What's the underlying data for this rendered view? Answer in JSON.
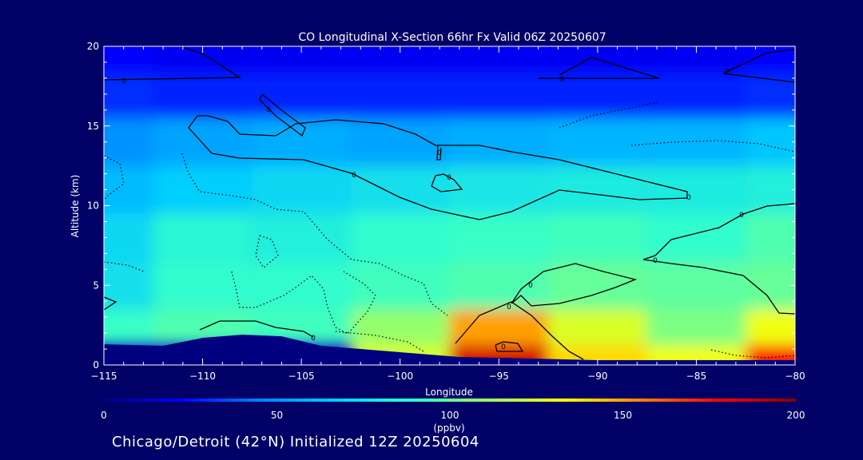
{
  "chart_data": {
    "type": "heatmap",
    "title": "CO Longitudinal X-Section 66hr  Fx Valid 06Z 20250607",
    "xlabel": "Longitude",
    "ylabel": "Altitude (km)",
    "xlim": [
      -115,
      -80
    ],
    "ylim": [
      0,
      20
    ],
    "x_ticks": [
      -115,
      -110,
      -105,
      -100,
      -95,
      -90,
      -85,
      -80
    ],
    "x_tick_labels": [
      "−115",
      "−110",
      "−105",
      "−100",
      "−95",
      "−90",
      "−85",
      "−80"
    ],
    "y_ticks": [
      0,
      5,
      10,
      15,
      20
    ],
    "y_tick_labels": [
      "0",
      "5",
      "10",
      "15",
      "20"
    ],
    "colorbar": {
      "min": 0,
      "max": 200,
      "ticks": [
        0,
        50,
        100,
        150,
        200
      ],
      "tick_labels": [
        "0",
        "50",
        "100",
        "150",
        "200"
      ],
      "units": "(ppbv)",
      "colors": [
        "#000080",
        "#0000ff",
        "#0080ff",
        "#00ccff",
        "#33ffcc",
        "#99ff66",
        "#ffff00",
        "#ff8000",
        "#ff0000",
        "#800000"
      ]
    },
    "co_field": {
      "x": [
        -115,
        -110,
        -105,
        -100,
        -95,
        -90,
        -85,
        -80
      ],
      "altitude_levels": [
        0.5,
        2,
        5,
        8,
        11,
        14,
        17,
        19.5
      ],
      "values": [
        [
          null,
          null,
          null,
          125,
          185,
          140,
          130,
          175
        ],
        [
          90,
          95,
          92,
          110,
          150,
          125,
          105,
          130
        ],
        [
          75,
          88,
          88,
          92,
          95,
          100,
          98,
          100
        ],
        [
          72,
          85,
          82,
          88,
          90,
          92,
          88,
          95
        ],
        [
          62,
          68,
          72,
          75,
          78,
          80,
          80,
          82
        ],
        [
          50,
          55,
          58,
          55,
          58,
          60,
          60,
          65
        ],
        [
          30,
          28,
          28,
          28,
          28,
          28,
          28,
          30
        ],
        [
          22,
          20,
          20,
          20,
          20,
          20,
          20,
          22
        ]
      ]
    },
    "terrain_km": {
      "x": [
        -115,
        -112,
        -110,
        -108,
        -106,
        -104,
        -102,
        -100,
        -97,
        -95,
        -90,
        -85,
        -80
      ],
      "height": [
        1.3,
        1.2,
        1.7,
        1.9,
        1.8,
        1.2,
        1.0,
        0.8,
        0.5,
        0.45,
        0.3,
        0.3,
        0.3
      ]
    },
    "contour_labels": [
      "0",
      "0",
      "0",
      "0",
      "0",
      "0",
      "0",
      "0",
      "0",
      "0",
      "0",
      "0",
      "0",
      "0"
    ]
  },
  "footer": "Chicago/Detroit (42°N) Initialized 12Z 20250604"
}
